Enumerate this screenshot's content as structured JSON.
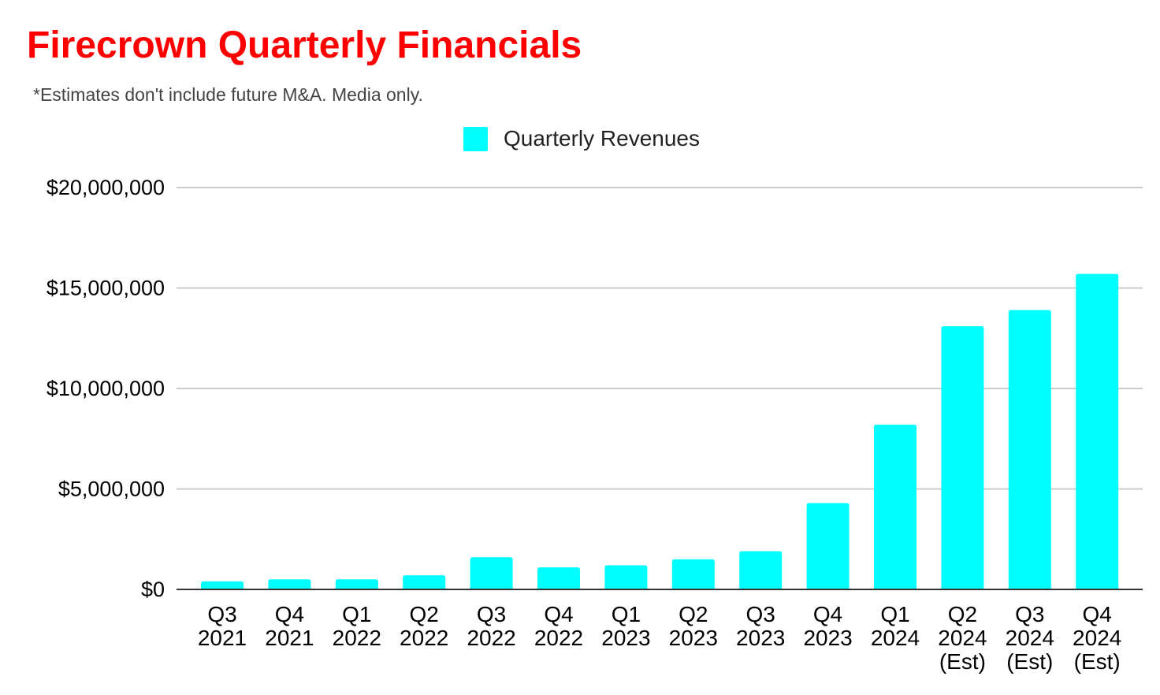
{
  "title": "Firecrown Quarterly Financials",
  "subtitle": "*Estimates don't include future M&A. Media only.",
  "colors": {
    "title": "#ff0000",
    "bar": "#00ffff",
    "grid": "#cccccc",
    "axis": "#333333"
  },
  "chart_data": {
    "type": "bar",
    "title": "Firecrown Quarterly Financials",
    "subtitle": "*Estimates don't include future M&A. Media only.",
    "legend": {
      "position": "top-center"
    },
    "categories": [
      [
        "Q3",
        "2021"
      ],
      [
        "Q4",
        "2021"
      ],
      [
        "Q1",
        "2022"
      ],
      [
        "Q2",
        "2022"
      ],
      [
        "Q3",
        "2022"
      ],
      [
        "Q4",
        "2022"
      ],
      [
        "Q1",
        "2023"
      ],
      [
        "Q2",
        "2023"
      ],
      [
        "Q3",
        "2023"
      ],
      [
        "Q4",
        "2023"
      ],
      [
        "Q1",
        "2024"
      ],
      [
        "Q2",
        "2024",
        "(Est)"
      ],
      [
        "Q3",
        "2024",
        "(Est)"
      ],
      [
        "Q4",
        "2024",
        "(Est)"
      ]
    ],
    "series": [
      {
        "name": "Quarterly Revenues",
        "color": "#00ffff",
        "values": [
          400000,
          500000,
          500000,
          700000,
          1600000,
          1100000,
          1200000,
          1500000,
          1900000,
          4300000,
          8200000,
          13100000,
          13900000,
          15700000
        ]
      }
    ],
    "ylim": [
      0,
      20000000
    ],
    "yticks": [
      0,
      5000000,
      10000000,
      15000000,
      20000000
    ],
    "ytick_labels": [
      "$0",
      "$5,000,000",
      "$10,000,000",
      "$15,000,000",
      "$20,000,000"
    ],
    "xlabel": "",
    "ylabel": "",
    "grid": true
  }
}
